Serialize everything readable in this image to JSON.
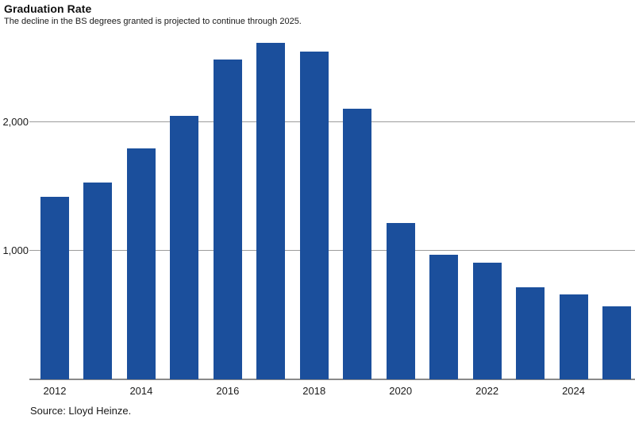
{
  "chart_data": {
    "type": "bar",
    "title": "Graduation Rate",
    "subtitle": "The decline in the BS degrees granted is projected to continue through 2025.",
    "source": "Source: Lloyd Heinze.",
    "categories": [
      "2012",
      "2013",
      "2014",
      "2015",
      "2016",
      "2017",
      "2018",
      "2019",
      "2020",
      "2021",
      "2022",
      "2023",
      "2024",
      "2025"
    ],
    "values": [
      1420,
      1530,
      1800,
      2050,
      2490,
      2620,
      2550,
      2110,
      1220,
      970,
      910,
      720,
      660,
      570
    ],
    "x_tick_labels": [
      "2012",
      "2014",
      "2016",
      "2018",
      "2020",
      "2022",
      "2024"
    ],
    "y_ticks": [
      1000,
      2000
    ],
    "y_tick_labels": [
      "1,000",
      "2,000"
    ],
    "ylim": [
      0,
      2670
    ],
    "xlabel": "",
    "ylabel": "",
    "grid": "horizontal",
    "legend": "none",
    "bar_color": "#1B4F9C",
    "grid_color": "#9c9c9c",
    "axis_color": "#8a8a8a",
    "text_color": "#1a1a1a"
  }
}
